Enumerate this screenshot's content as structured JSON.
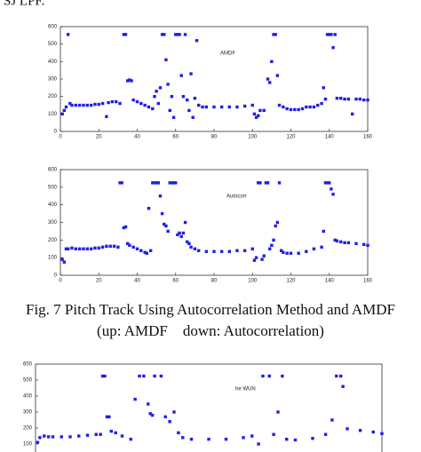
{
  "header_text": "SJ LPF.",
  "caption": [
    "Fig. 7 Pitch Track Using Autocorrelation Method and AMDF",
    "(up: AMDF    down: Autocorrelation)"
  ],
  "chart_data": [
    {
      "type": "scatter",
      "annotation": "AMDF",
      "color": "#1f1fe8",
      "xlim": [
        0,
        160
      ],
      "xticks": [
        0,
        20,
        40,
        60,
        80,
        100,
        120,
        140,
        160
      ],
      "ylim": [
        0,
        600
      ],
      "yticks": [
        0,
        100,
        200,
        300,
        400,
        500,
        600
      ],
      "x": [
        1,
        2,
        3,
        4,
        5,
        6,
        8,
        10,
        12,
        14,
        16,
        18,
        20,
        22,
        24,
        25,
        27,
        29,
        31,
        33,
        34,
        35,
        36,
        37,
        38,
        40,
        42,
        44,
        46,
        48,
        49,
        50,
        51,
        52,
        53,
        54,
        55,
        56,
        57,
        58,
        59,
        60,
        61,
        62,
        63,
        64,
        65,
        66,
        67,
        68,
        69,
        70,
        71,
        72,
        74,
        76,
        80,
        84,
        88,
        92,
        96,
        100,
        101,
        102,
        103,
        104,
        106,
        108,
        109,
        110,
        111,
        112,
        113,
        114,
        116,
        118,
        120,
        122,
        124,
        126,
        128,
        130,
        132,
        134,
        136,
        137,
        138,
        139,
        140,
        141,
        142,
        143,
        144,
        146,
        148,
        150,
        152,
        154,
        156,
        158,
        160
      ],
      "values": [
        100,
        120,
        140,
        555,
        160,
        150,
        150,
        150,
        150,
        150,
        150,
        155,
        155,
        160,
        85,
        165,
        170,
        170,
        160,
        555,
        555,
        290,
        295,
        290,
        180,
        170,
        160,
        150,
        140,
        130,
        200,
        230,
        160,
        250,
        555,
        555,
        410,
        270,
        120,
        200,
        80,
        555,
        555,
        555,
        320,
        200,
        555,
        180,
        120,
        330,
        80,
        190,
        520,
        150,
        140,
        140,
        140,
        140,
        140,
        140,
        145,
        150,
        100,
        80,
        90,
        120,
        120,
        300,
        280,
        400,
        555,
        555,
        320,
        150,
        140,
        130,
        125,
        125,
        125,
        130,
        140,
        140,
        140,
        150,
        160,
        250,
        185,
        555,
        555,
        555,
        480,
        555,
        190,
        190,
        185,
        185,
        100,
        185,
        185,
        180,
        180
      ]
    },
    {
      "type": "scatter",
      "annotation": "Autocorr",
      "color": "#1f1fe8",
      "xlim": [
        0,
        160
      ],
      "xticks": [
        0,
        20,
        40,
        60,
        80,
        100,
        120,
        140,
        160
      ],
      "ylim": [
        0,
        600
      ],
      "yticks": [
        0,
        100,
        200,
        300,
        400,
        500,
        600
      ],
      "x": [
        1,
        2,
        3,
        4,
        6,
        8,
        10,
        12,
        14,
        16,
        18,
        20,
        22,
        24,
        26,
        28,
        30,
        31,
        32,
        33,
        34,
        35,
        36,
        38,
        40,
        42,
        44,
        45,
        46,
        47,
        48,
        49,
        50,
        51,
        52,
        53,
        54,
        55,
        56,
        57,
        58,
        59,
        60,
        61,
        62,
        63,
        64,
        65,
        66,
        67,
        68,
        70,
        72,
        76,
        80,
        84,
        88,
        92,
        96,
        100,
        101,
        102,
        103,
        104,
        105,
        106,
        107,
        108,
        109,
        110,
        111,
        112,
        113,
        114,
        115,
        116,
        118,
        120,
        124,
        128,
        132,
        136,
        137,
        138,
        139,
        140,
        141,
        142,
        143,
        144,
        146,
        148,
        150,
        154,
        158,
        160
      ],
      "values": [
        90,
        75,
        150,
        150,
        155,
        150,
        150,
        150,
        150,
        150,
        155,
        155,
        160,
        165,
        165,
        165,
        160,
        525,
        525,
        270,
        275,
        180,
        170,
        160,
        150,
        140,
        130,
        125,
        380,
        140,
        525,
        525,
        525,
        525,
        450,
        350,
        290,
        280,
        250,
        525,
        525,
        525,
        525,
        230,
        240,
        220,
        240,
        300,
        190,
        180,
        160,
        150,
        140,
        135,
        135,
        135,
        135,
        140,
        140,
        150,
        85,
        100,
        525,
        525,
        90,
        110,
        525,
        525,
        150,
        170,
        200,
        280,
        300,
        525,
        140,
        130,
        125,
        125,
        125,
        135,
        150,
        160,
        250,
        525,
        525,
        525,
        490,
        460,
        200,
        195,
        190,
        185,
        185,
        180,
        175,
        170
      ]
    },
    {
      "type": "scatter",
      "annotation": "he WUN",
      "color": "#1f1fe8",
      "xlim": [
        0,
        160
      ],
      "ylim": [
        0,
        600
      ],
      "yticks": [
        100,
        200,
        300,
        400,
        500,
        600
      ],
      "x": [
        1,
        2,
        4,
        6,
        8,
        12,
        16,
        20,
        24,
        28,
        30,
        31,
        32,
        33,
        34,
        35,
        37,
        40,
        44,
        46,
        48,
        50,
        52,
        53,
        54,
        55,
        58,
        60,
        62,
        64,
        66,
        68,
        72,
        80,
        88,
        96,
        100,
        103,
        105,
        108,
        110,
        112,
        114,
        116,
        120,
        128,
        134,
        137,
        139,
        141,
        142,
        144,
        150,
        156,
        160
      ],
      "values": [
        110,
        140,
        150,
        145,
        145,
        145,
        145,
        150,
        155,
        160,
        160,
        525,
        525,
        270,
        270,
        180,
        170,
        150,
        130,
        380,
        525,
        525,
        350,
        290,
        280,
        525,
        525,
        270,
        240,
        300,
        170,
        140,
        130,
        130,
        130,
        140,
        150,
        100,
        525,
        525,
        160,
        300,
        525,
        130,
        125,
        135,
        160,
        250,
        525,
        525,
        460,
        195,
        185,
        175,
        165
      ]
    }
  ]
}
